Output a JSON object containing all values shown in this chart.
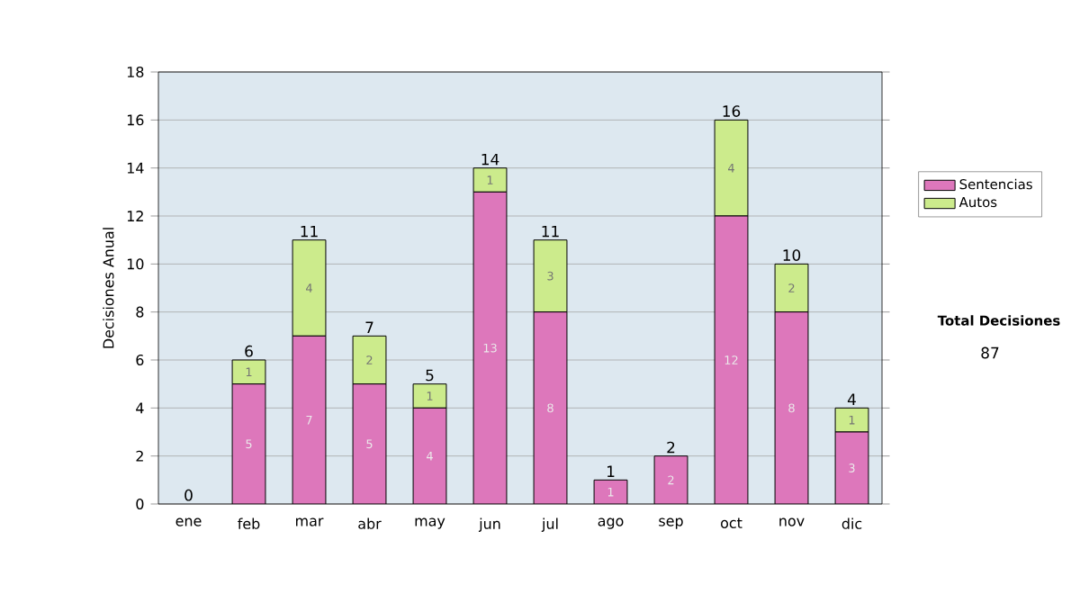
{
  "chart_data": {
    "type": "bar",
    "stacked": true,
    "ylabel": "Decisiones Anual",
    "categories": [
      "ene",
      "feb",
      "mar",
      "abr",
      "may",
      "jun",
      "jul",
      "ago",
      "sep",
      "oct",
      "nov",
      "dic"
    ],
    "series": [
      {
        "name": "Sentencias",
        "color": "#dd77bb",
        "values": [
          0,
          5,
          7,
          5,
          4,
          13,
          8,
          1,
          2,
          12,
          8,
          3
        ],
        "value_labels": [
          null,
          "5",
          "7",
          "5",
          "4",
          "13",
          "8",
          "1",
          "2",
          "12",
          "8",
          "3"
        ]
      },
      {
        "name": "Autos",
        "color": "#cceb8c",
        "values": [
          0,
          1,
          4,
          2,
          1,
          1,
          3,
          0,
          0,
          4,
          2,
          1
        ],
        "value_labels": [
          null,
          "1",
          "4",
          "2",
          "1",
          "1",
          "3",
          null,
          null,
          "4",
          "2",
          "1"
        ]
      }
    ],
    "totals": [
      "0",
      "6",
      "11",
      "7",
      "5",
      "14",
      "11",
      "1",
      "2",
      "16",
      "10",
      "4"
    ],
    "ylim": [
      0,
      18
    ],
    "yticks": [
      0,
      2,
      4,
      6,
      8,
      10,
      12,
      14,
      16,
      18
    ],
    "grid": "y",
    "legend": "right",
    "annotations": [
      "Total Decisiones",
      "87"
    ]
  }
}
